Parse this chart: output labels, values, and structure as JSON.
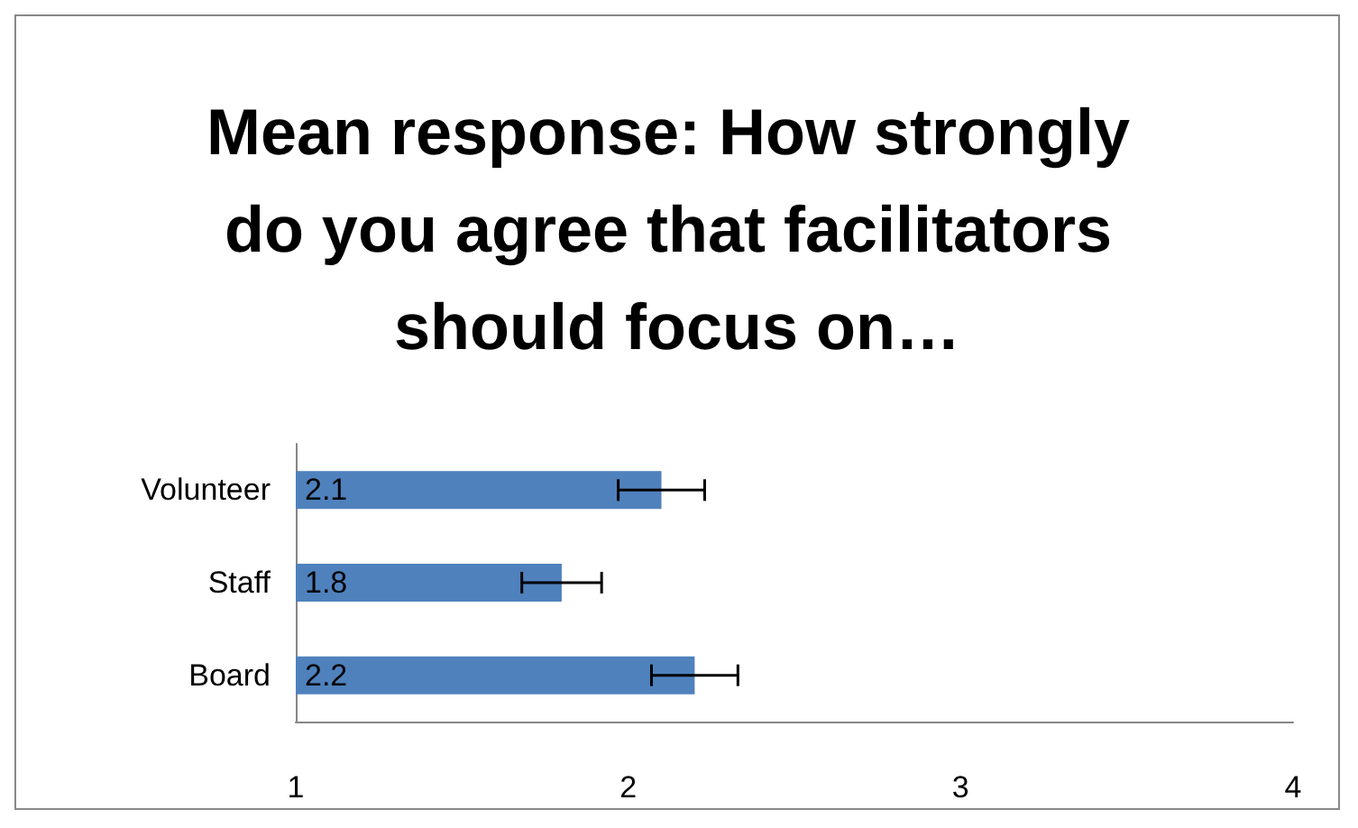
{
  "chart_data": {
    "type": "bar",
    "orientation": "horizontal",
    "title": "Mean response: How strongly do you agree that facilitators should focus on…",
    "categories": [
      "Volunteer",
      "Staff",
      "Board"
    ],
    "values": [
      2.1,
      1.8,
      2.2
    ],
    "errors": [
      0.13,
      0.12,
      0.13
    ],
    "color": "#4f81bd",
    "xlim": [
      1,
      4
    ],
    "xticks": [
      1,
      2,
      3,
      4
    ],
    "grid": false,
    "data_labels": true
  }
}
